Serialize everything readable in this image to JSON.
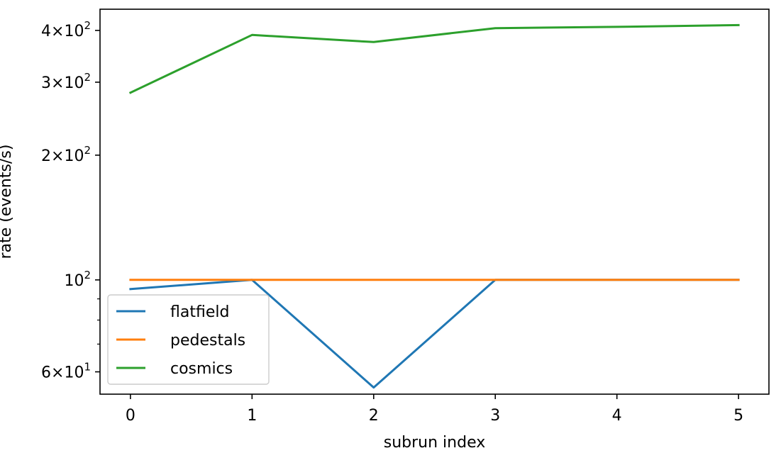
{
  "chart_data": {
    "type": "line",
    "title": "",
    "xlabel": "subrun index",
    "ylabel": "rate (events/s)",
    "yscale": "log",
    "x": [
      0,
      1,
      2,
      3,
      4,
      5
    ],
    "xlim": [
      -0.25,
      5.25
    ],
    "ylim": [
      53,
      450
    ],
    "x_ticks": [
      "0",
      "1",
      "2",
      "3",
      "4",
      "5"
    ],
    "y_ticks": [
      {
        "value": 400,
        "mantissa": "4",
        "base": "10",
        "exp": "2"
      },
      {
        "value": 300,
        "mantissa": "3",
        "base": "10",
        "exp": "2"
      },
      {
        "value": 200,
        "mantissa": "2",
        "base": "10",
        "exp": "2"
      },
      {
        "value": 100,
        "mantissa": "",
        "base": "10",
        "exp": "2"
      },
      {
        "value": 60,
        "mantissa": "6",
        "base": "10",
        "exp": "1"
      }
    ],
    "y_minor_ticks": [
      70,
      80,
      90
    ],
    "grid": false,
    "legend": "lower-left",
    "series": [
      {
        "name": "flatfield",
        "color": "#1f77b4",
        "values": [
          95,
          100,
          55,
          100,
          100,
          100
        ]
      },
      {
        "name": "pedestals",
        "color": "#ff7f0e",
        "values": [
          100,
          100,
          100,
          100,
          100,
          100
        ]
      },
      {
        "name": "cosmics",
        "color": "#2ca02c",
        "values": [
          283,
          390,
          375,
          405,
          408,
          412
        ]
      }
    ]
  }
}
